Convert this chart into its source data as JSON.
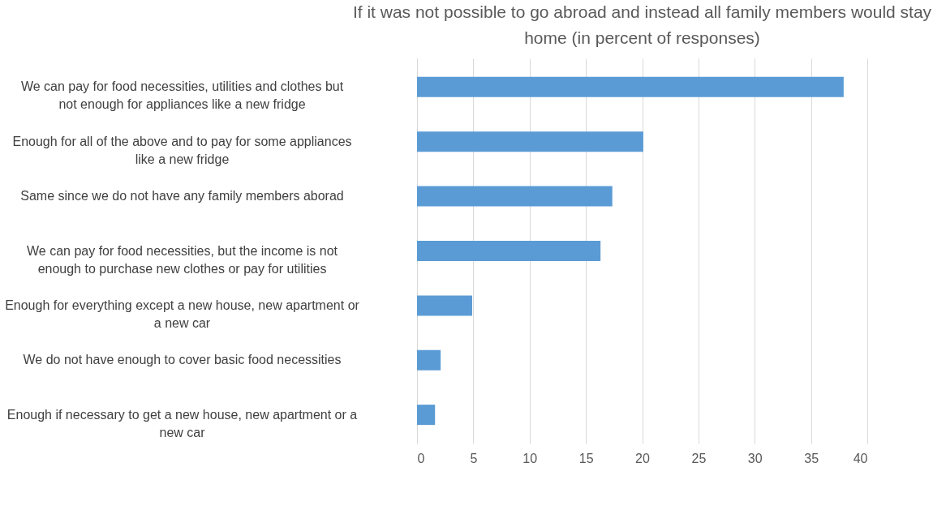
{
  "chart_data": {
    "type": "bar",
    "orientation": "horizontal",
    "title": "If it was not possible to go abroad and instead all family members would stay home  (in percent of responses)",
    "categories": [
      "We can pay for food necessities, utilities and clothes but not enough for appliances like a new fridge",
      "Enough for all of the above and to pay for some appliances like a new fridge",
      "Same since we do not have any family members aborad",
      "We can pay for food necessities, but the income is not enough to purchase new clothes or pay for utilities",
      "Enough for everything except a new house, new apartment or a new car",
      "We do not have enough to cover basic food necessities",
      "Enough if necessary to get a new house, new apartment or a new car"
    ],
    "values": [
      37.9,
      20.1,
      17.35,
      16.3,
      4.9,
      2.1,
      1.6
    ],
    "color": "#5b9bd5",
    "xlim": [
      0,
      40
    ],
    "xticks": [
      0,
      5,
      10,
      15,
      20,
      25,
      30,
      35,
      40
    ],
    "grid": "x"
  }
}
